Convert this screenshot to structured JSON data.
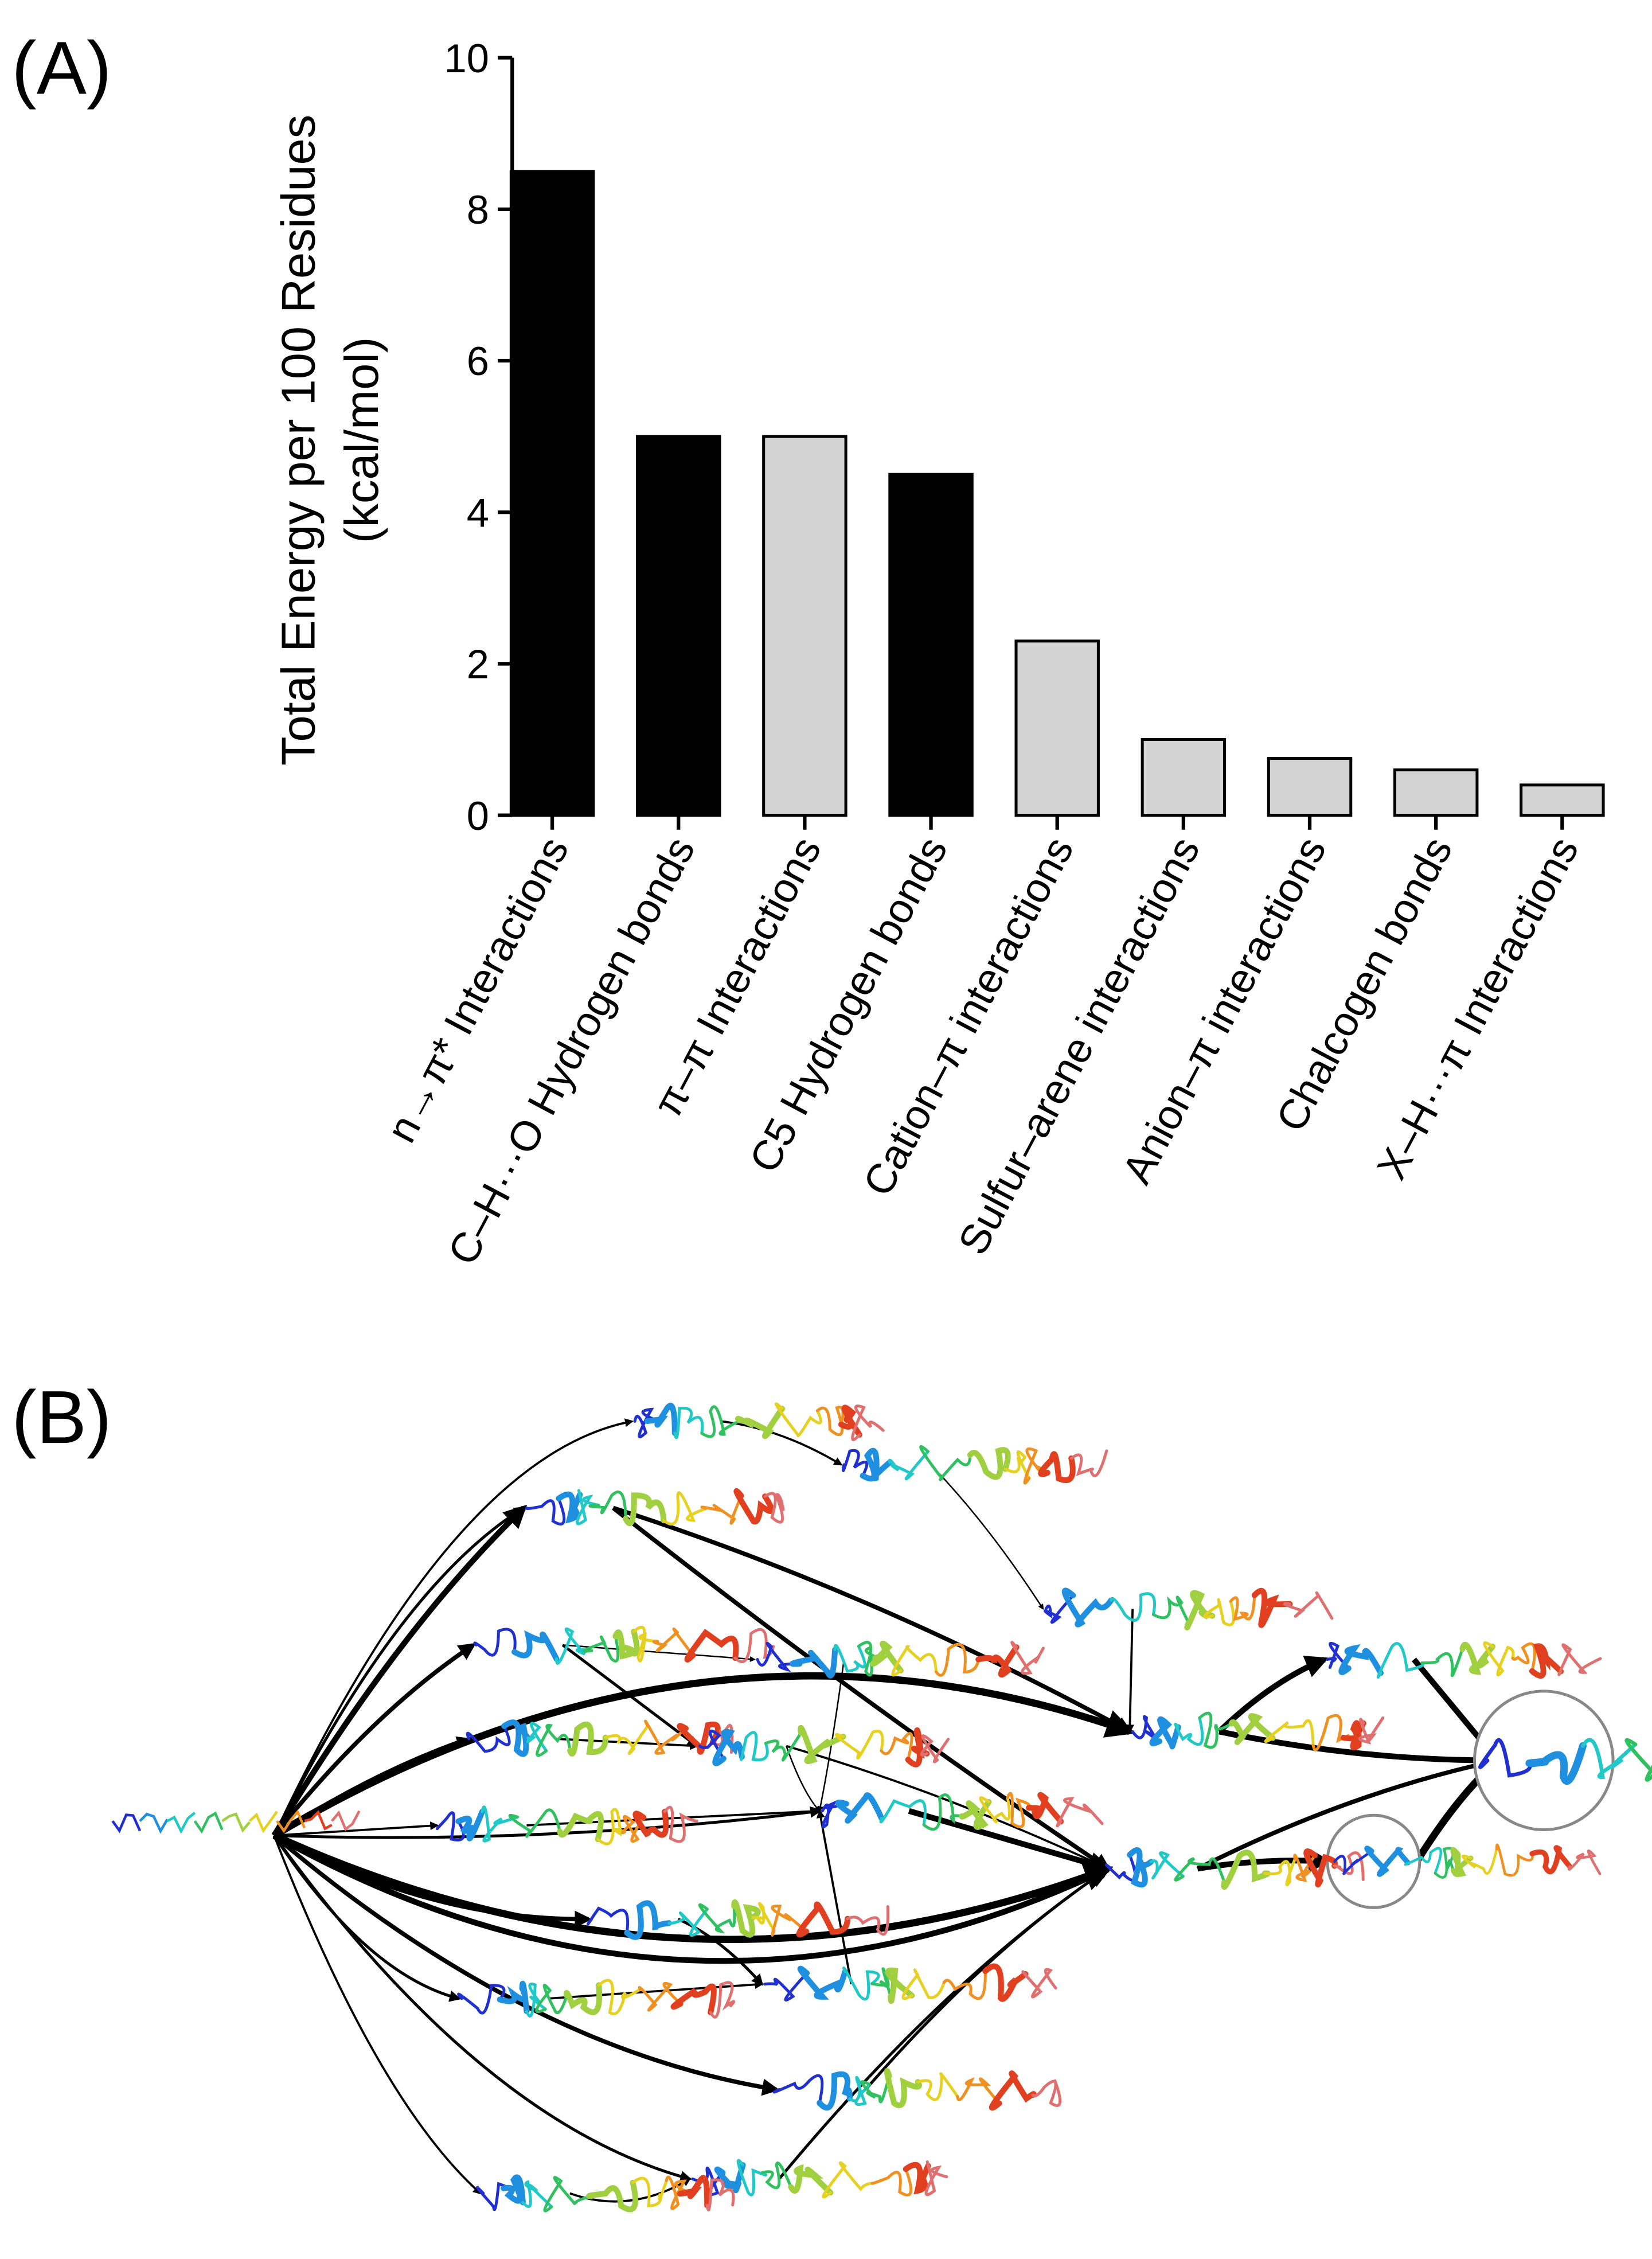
{
  "chart_data": {
    "type": "bar",
    "label": "(A)",
    "ylabel": [
      "Total Energy per 100 Residues",
      "(kcal/mol)"
    ],
    "categories": [
      "n→π* Interactions",
      "C–H···O Hydrogen bonds",
      "π–π Interactions",
      "C5 Hydrogen bonds",
      "Cation–π interactions",
      "Sulfur–arene interactions",
      "Anion–π interactions",
      "Chalcogen bonds",
      "X–H···π Interactions"
    ],
    "values": [
      8.5,
      5.0,
      5.0,
      4.5,
      2.3,
      1.0,
      0.75,
      0.6,
      0.4
    ],
    "colors": [
      "#000000",
      "#000000",
      "#d3d3d3",
      "#000000",
      "#d3d3d3",
      "#d3d3d3",
      "#d3d3d3",
      "#d3d3d3",
      "#d3d3d3"
    ],
    "ylim": [
      0,
      10
    ],
    "yticks": [
      0,
      2,
      4,
      6,
      8,
      10
    ],
    "grid": false
  },
  "diagram": {
    "label": "(B)"
  }
}
